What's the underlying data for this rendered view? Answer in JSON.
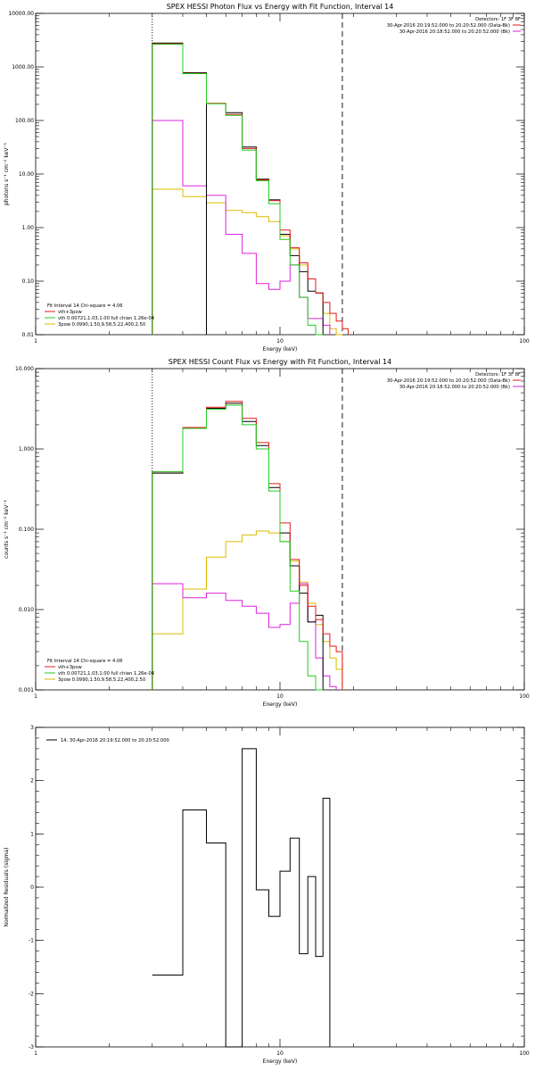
{
  "colors": {
    "black": "#000000",
    "red": "#e41a1c",
    "green": "#22cc22",
    "magenta": "#dd22dd",
    "yellow": "#ddbb00"
  },
  "chart_data": [
    {
      "type": "line",
      "title": "SPEX HESSI Photon Flux vs Energy with Fit Function, Interval 14",
      "xlabel": "Energy (keV)",
      "ylabel": "photons s⁻¹ cm⁻² keV⁻¹",
      "xscale": "log",
      "yscale": "log",
      "xlim": [
        1,
        100
      ],
      "ylim": [
        0.01,
        10000
      ],
      "xticks": [
        1,
        10,
        100
      ],
      "xtick_labels": [
        "1",
        "10",
        "100"
      ],
      "yticks": [
        0.01,
        0.1,
        1,
        10,
        100,
        1000,
        10000
      ],
      "ytick_labels": [
        "0.01",
        "0.10",
        "1.00",
        "10.00",
        "100.00",
        "1000.00",
        "10000.00"
      ],
      "header": {
        "line1": "Detectors: 1F 3F 8F",
        "line2": "30-Apr-2016 20:19:52.000 to 20:20:52.000 (Data-Bk)",
        "line3": "30-Apr-2016 20:18:52.000 to 20:20:52.000 (Bk)"
      },
      "legend": {
        "line1": "Fit Interval 14   Chi-square = 4.06",
        "items": [
          "vth+3pow",
          "vth 0.00721,1.03,1.00  full chian 1.26e-04",
          "3pow 0.0990,1.50,9.58,5.22,400,2.50"
        ]
      },
      "vlines": [
        3,
        18
      ],
      "edges": [
        3,
        4,
        5,
        6,
        7,
        8,
        9,
        10,
        11,
        12,
        13,
        14,
        15,
        16,
        17,
        18,
        19,
        20,
        21,
        22,
        23,
        24,
        25,
        26
      ],
      "series": [
        {
          "name": "data",
          "color_key": "black",
          "values": [
            2800,
            780,
            null,
            140,
            32,
            8,
            3.3,
            0.75,
            0.3,
            0.15,
            0.065,
            0.06
          ]
        },
        {
          "name": "vth+3pow",
          "color_key": "red",
          "values": [
            2700,
            760,
            210,
            130,
            30,
            7.8,
            3.2,
            0.9,
            0.42,
            0.22,
            0.11,
            0.06,
            0.04,
            0.025,
            0.018,
            0.013
          ]
        },
        {
          "name": "vth",
          "color_key": "green",
          "values": [
            2650,
            750,
            205,
            125,
            28,
            7.5,
            2.8,
            0.6,
            0.2,
            0.05,
            0.015,
            0.005
          ]
        },
        {
          "name": "3pow",
          "color_key": "magenta",
          "values": [
            100,
            6,
            4,
            0.75,
            0.33,
            0.09,
            0.07,
            0.1,
            0.2,
            0.05,
            0.02,
            0.02,
            0.015
          ]
        },
        {
          "name": "yellow",
          "color_key": "yellow",
          "values": [
            5.2,
            3.8,
            2.9,
            2.1,
            1.9,
            1.6,
            1.3,
            0.7,
            0.4,
            0.2,
            0.11,
            0.06,
            0.025,
            0.013,
            0.008
          ]
        }
      ]
    },
    {
      "type": "line",
      "title": "SPEX HESSI Count Flux vs Energy with Fit Function, Interval 14",
      "xlabel": "Energy (keV)",
      "ylabel": "counts s⁻¹ cm⁻² keV⁻¹",
      "xscale": "log",
      "yscale": "log",
      "xlim": [
        1,
        100
      ],
      "ylim": [
        0.001,
        10
      ],
      "xticks": [
        1,
        10,
        100
      ],
      "xtick_labels": [
        "1",
        "10",
        "100"
      ],
      "yticks": [
        0.001,
        0.01,
        0.1,
        1,
        10
      ],
      "ytick_labels": [
        "0.001",
        "0.010",
        "0.100",
        "1.000",
        "10.000"
      ],
      "header": {
        "line1": "Detectors: 1F 3F 8F",
        "line2": "30-Apr-2016 20:19:52.000 to 20:20:52.000 (Data-Bk)",
        "line3": "30-Apr-2016 20:18:52.000 to 20:20:52.000 (Bk)"
      },
      "legend": {
        "line1": "Fit Interval 14   Chi-square = 4.06",
        "items": [
          "vth+3pow",
          "vth 0.00721,1.03,1.00  full chian 1.26e-04",
          "3pow 0.0990,1.50,9.58,5.22,400,2.50"
        ]
      },
      "vlines": [
        3,
        18
      ],
      "edges": [
        3,
        4,
        5,
        6,
        7,
        8,
        9,
        10,
        11,
        12,
        13,
        14,
        15,
        16,
        17,
        18,
        19,
        20,
        21,
        22,
        23,
        24,
        25,
        26
      ],
      "series": [
        {
          "name": "data",
          "color_key": "black",
          "values": [
            0.5,
            1.8,
            3.2,
            3.7,
            2.2,
            1.1,
            0.33,
            0.09,
            0.035,
            0.016,
            0.007,
            0.0085
          ]
        },
        {
          "name": "vth+3pow",
          "color_key": "red",
          "values": [
            0.52,
            1.85,
            3.3,
            3.9,
            2.4,
            1.2,
            0.37,
            0.12,
            0.042,
            0.02,
            0.011,
            0.0075,
            0.005,
            0.0035,
            0.003
          ]
        },
        {
          "name": "vth",
          "color_key": "green",
          "values": [
            0.52,
            1.8,
            3.1,
            3.5,
            2.0,
            1.0,
            0.3,
            0.07,
            0.017,
            0.004,
            0.0015,
            0.001
          ]
        },
        {
          "name": "3pow",
          "color_key": "magenta",
          "values": [
            0.021,
            0.014,
            0.016,
            0.013,
            0.011,
            0.009,
            0.006,
            0.0065,
            0.012,
            0.021,
            0.007,
            0.0025,
            0.0015,
            0.0011
          ]
        },
        {
          "name": "yellow",
          "color_key": "yellow",
          "values": [
            0.005,
            0.018,
            0.045,
            0.07,
            0.085,
            0.095,
            0.09,
            0.07,
            0.04,
            0.022,
            0.012,
            0.0065,
            0.004,
            0.0025,
            0.0018
          ]
        }
      ]
    },
    {
      "type": "line",
      "title": "",
      "xlabel": "Energy (keV)",
      "ylabel": "Normalized Residuals (sigma)",
      "xscale": "log",
      "yscale": "linear",
      "xlim": [
        1,
        100
      ],
      "ylim": [
        -3,
        3
      ],
      "xticks": [
        1,
        10,
        100
      ],
      "xtick_labels": [
        "1",
        "10",
        "100"
      ],
      "yticks": [
        -3,
        -2,
        -1,
        0,
        1,
        2,
        3
      ],
      "ytick_labels": [
        "-3",
        "-2",
        "-1",
        "0",
        "1",
        "2",
        "3"
      ],
      "legend": {
        "line1": "14. 30-Apr-2016 20:19:52.000 to 20:20:52.000"
      },
      "edges": [
        3,
        4,
        5,
        6,
        7,
        8,
        9,
        10,
        11,
        12,
        13,
        14,
        15,
        16,
        17,
        18,
        19,
        20,
        21,
        22,
        23,
        24,
        25,
        26
      ],
      "series": [
        {
          "name": "14. 30-Apr-2016 20:19:52.000 to 20:20:52.000",
          "color_key": "black",
          "values": [
            -1.65,
            1.45,
            0.83,
            -3.0,
            2.6,
            -0.05,
            -0.55,
            0.3,
            0.92,
            -1.25,
            0.2,
            -1.3,
            1.67
          ]
        }
      ]
    }
  ]
}
